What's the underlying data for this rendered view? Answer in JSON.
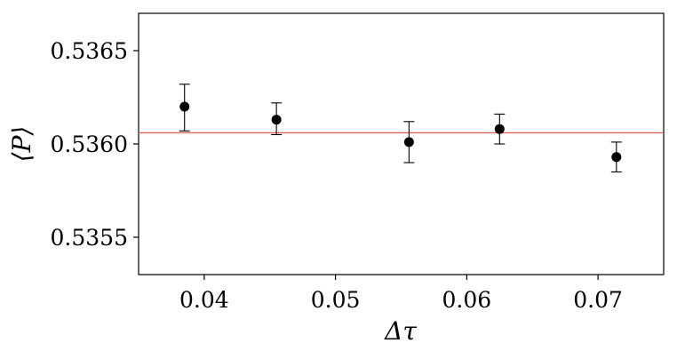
{
  "chart_data": {
    "type": "scatter",
    "title": "",
    "xlabel": "Δτ",
    "ylabel": "⟨P⟩",
    "xlim": [
      0.035,
      0.075
    ],
    "ylim": [
      0.5353,
      0.5367
    ],
    "x_ticks": [
      0.04,
      0.05,
      0.06,
      0.07
    ],
    "x_tick_labels": [
      "0.04",
      "0.05",
      "0.06",
      "0.07"
    ],
    "y_ticks": [
      0.5355,
      0.536,
      0.5365
    ],
    "y_tick_labels": [
      "0.5355",
      "0.5360",
      "0.5365"
    ],
    "grid": false,
    "legend": "none",
    "reference_line": {
      "y": 0.53606,
      "color": "#e0625f"
    },
    "marker_color": "#000000",
    "series": [
      {
        "x": [
          0.0385,
          0.0455,
          0.0556,
          0.0625,
          0.0714
        ],
        "y": [
          0.5362,
          0.53613,
          0.53601,
          0.53608,
          0.53593
        ],
        "yerr_low": [
          0.53607,
          0.53605,
          0.5359,
          0.536,
          0.53585
        ],
        "yerr_high": [
          0.53632,
          0.53622,
          0.53612,
          0.53616,
          0.53601
        ]
      }
    ]
  }
}
